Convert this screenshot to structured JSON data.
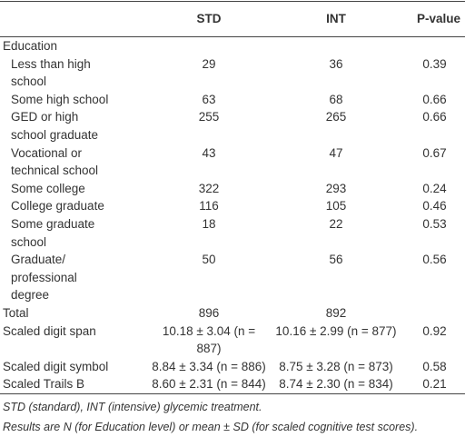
{
  "table": {
    "header": {
      "std": "STD",
      "int": "INT",
      "p": "P-value"
    },
    "education": {
      "label": "Education",
      "rows": [
        [
          "Less than high school",
          "29",
          "36",
          "0.39"
        ],
        [
          "Some high school",
          "63",
          "68",
          "0.66"
        ],
        [
          "GED or high school graduate",
          "255",
          "265",
          "0.66"
        ],
        [
          "Vocational or technical school",
          "43",
          "47",
          "0.67"
        ],
        [
          "Some college",
          "322",
          "293",
          "0.24"
        ],
        [
          "College graduate",
          "116",
          "105",
          "0.46"
        ],
        [
          "Some graduate school",
          "18",
          "22",
          "0.53"
        ],
        [
          "Graduate/ professional degree",
          "50",
          "56",
          "0.56"
        ]
      ]
    },
    "rows": [
      [
        "Total",
        "896",
        "892"
      ],
      [
        "Scaled digit span",
        "10.18 ± 3.04 (n = 887)",
        "10.16 ± 2.99 (n = 877)",
        "0.92"
      ],
      [
        "Scaled digit symbol",
        "8.84 ± 3.34 (n = 886)",
        "8.75 ± 3.28 (n = 873)",
        "0.58"
      ],
      [
        "Scaled Trails B",
        "8.60 ± 2.31 (n = 844)",
        "8.74 ± 2.30 (n = 834)",
        "0.21"
      ]
    ]
  },
  "footnotes": [
    "STD (standard), INT (intensive) glycemic treatment.",
    "Results are N (for Education level) or mean ± SD (for scaled cognitive test scores)."
  ]
}
